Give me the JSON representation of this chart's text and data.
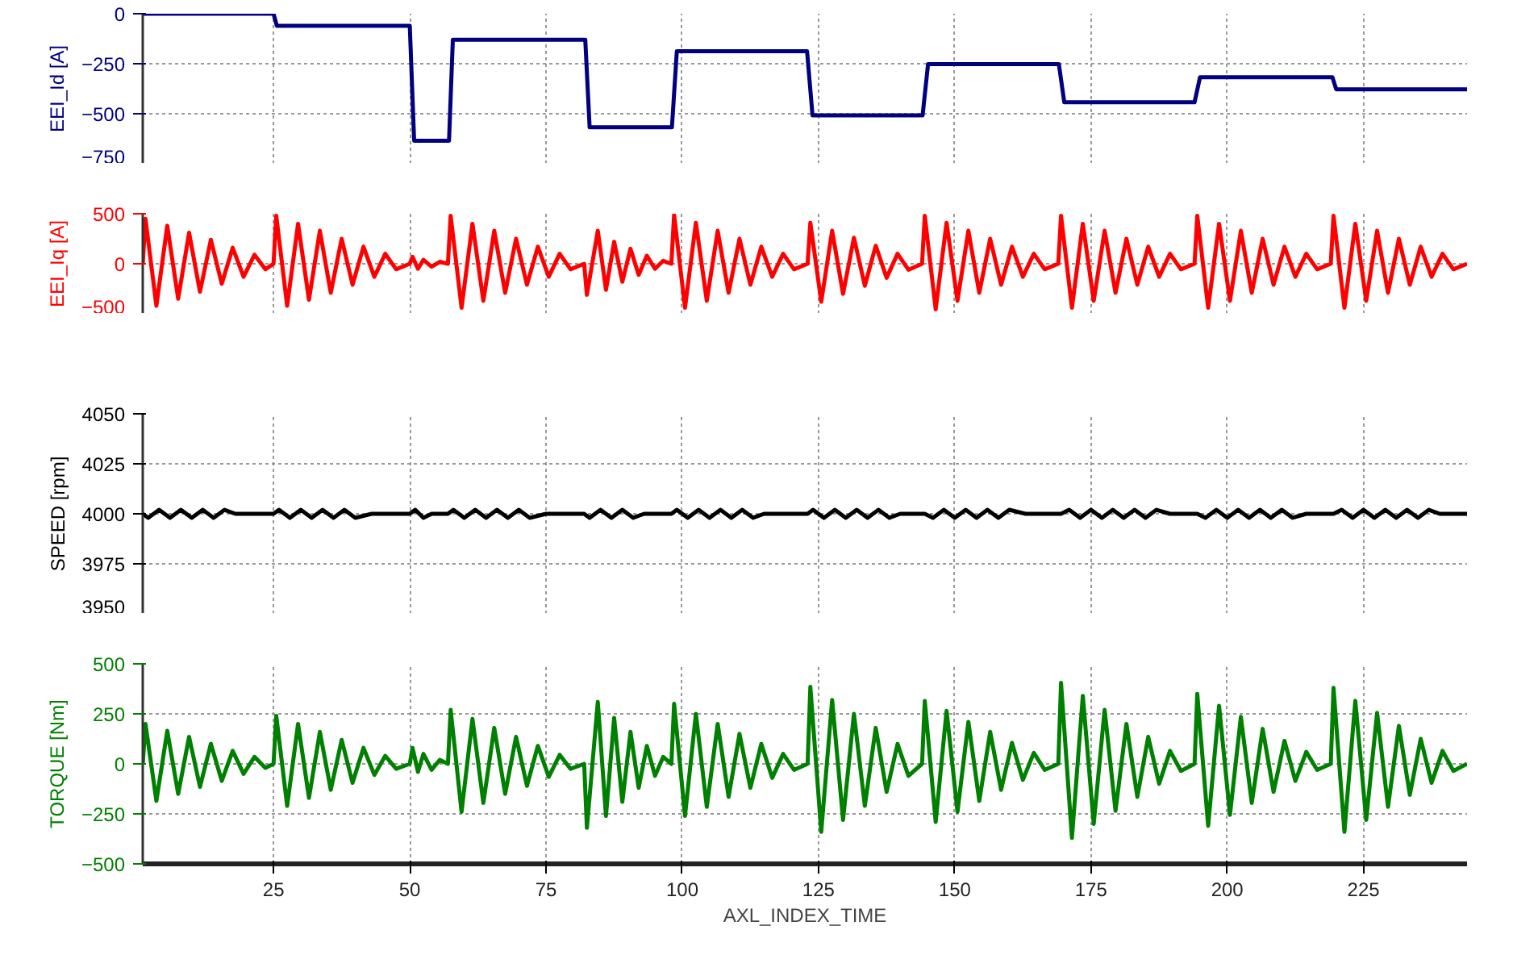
{
  "chart_data": [
    {
      "type": "line",
      "ylabel": "EEI_Id [A]",
      "xlim": [
        1,
        244
      ],
      "xticks": [
        25,
        50,
        75,
        100,
        125,
        150,
        175,
        200,
        225
      ],
      "ylim": [
        -750,
        0
      ],
      "yticks": [
        0,
        -250,
        -500,
        -750
      ],
      "grid": true,
      "tick_labels": "y",
      "series": [
        {
          "color": "#000080",
          "x": [
            1,
            25,
            25.6,
            50,
            50.8,
            57.2,
            57.9,
            82.2,
            83,
            98.1,
            99,
            122.9,
            123.9,
            144.1,
            145.1,
            169.1,
            170.1,
            194,
            195,
            219.3,
            220,
            244
          ],
          "values": [
            0,
            0,
            -60,
            -60,
            -635,
            -635,
            -130,
            -130,
            -568,
            -568,
            -188,
            -188,
            -508,
            -508,
            -252,
            -252,
            -443,
            -443,
            -318,
            -318,
            -378,
            -378
          ]
        }
      ]
    },
    {
      "type": "line",
      "ylabel": "EEI_Iq [A]",
      "xlim": [
        1,
        244
      ],
      "xticks": [
        25,
        50,
        75,
        100,
        125,
        150,
        175,
        200,
        225
      ],
      "ylim": [
        -500,
        500
      ],
      "yticks": [
        500,
        0,
        -500
      ],
      "grid": true,
      "tick_labels": "y",
      "series": [
        {
          "color": "#ff0000",
          "x": [
            1,
            1.5,
            3.5,
            5.5,
            7.5,
            9.5,
            11.5,
            13.5,
            15.5,
            17.5,
            19.5,
            21.5,
            23.5,
            25,
            25.5,
            27.5,
            29.5,
            31.5,
            33.5,
            35.5,
            37.5,
            39.5,
            41.5,
            43.5,
            45.5,
            47.5,
            50,
            50.5,
            51.5,
            52.5,
            54,
            55.5,
            57,
            57.5,
            59.5,
            61.5,
            63.5,
            65.5,
            67.5,
            69.5,
            71.5,
            73.5,
            75.5,
            77.5,
            79.5,
            82,
            82.5,
            84.5,
            86,
            87.5,
            89,
            90.5,
            92,
            93.5,
            95,
            96.5,
            98,
            98.5,
            100.5,
            102.5,
            104.5,
            106.5,
            108.5,
            110.5,
            112.5,
            114.5,
            116.5,
            118.5,
            120.5,
            123,
            123.5,
            125.5,
            127.5,
            129.5,
            131.5,
            133.5,
            135.5,
            137.5,
            139.5,
            141.5,
            144,
            144.5,
            146.5,
            148.5,
            150.5,
            152.5,
            154.5,
            156.5,
            158.5,
            160.5,
            162.5,
            164.5,
            166.5,
            169,
            169.5,
            171.5,
            173.5,
            175.5,
            177.5,
            179.5,
            181.5,
            183.5,
            185.5,
            187.5,
            189.5,
            191.5,
            194,
            194.5,
            196.5,
            198.5,
            200.5,
            202.5,
            204.5,
            206.5,
            208.5,
            210.5,
            212.5,
            214.5,
            216.5,
            219,
            219.5,
            221.5,
            223.5,
            225.5,
            227.5,
            229.5,
            231.5,
            233.5,
            235.5,
            237.5,
            239.5,
            241.5,
            244
          ],
          "values": [
            0,
            450,
            -420,
            380,
            -350,
            310,
            -280,
            240,
            -200,
            160,
            -130,
            90,
            -55,
            0,
            480,
            -420,
            400,
            -360,
            330,
            -290,
            250,
            -210,
            170,
            -130,
            100,
            -55,
            0,
            70,
            -50,
            40,
            -30,
            20,
            0,
            480,
            -440,
            400,
            -370,
            330,
            -290,
            250,
            -210,
            170,
            -130,
            100,
            -55,
            0,
            -310,
            330,
            -260,
            220,
            -180,
            150,
            -110,
            80,
            -50,
            30,
            0,
            490,
            -440,
            410,
            -370,
            330,
            -290,
            250,
            -210,
            170,
            -130,
            100,
            -55,
            0,
            410,
            -380,
            330,
            -300,
            260,
            -220,
            180,
            -140,
            100,
            -60,
            0,
            480,
            -455,
            410,
            -370,
            330,
            -290,
            250,
            -210,
            170,
            -130,
            100,
            -55,
            0,
            480,
            -440,
            400,
            -370,
            330,
            -290,
            250,
            -210,
            170,
            -130,
            100,
            -55,
            0,
            480,
            -440,
            400,
            -370,
            330,
            -290,
            250,
            -210,
            170,
            -130,
            100,
            -55,
            0,
            480,
            -440,
            400,
            -370,
            330,
            -290,
            250,
            -210,
            170,
            -130,
            100,
            -55,
            0
          ]
        }
      ]
    },
    {
      "type": "line",
      "ylabel": "SPEED [rpm]",
      "xlim": [
        1,
        244
      ],
      "xticks": [
        25,
        50,
        75,
        100,
        125,
        150,
        175,
        200,
        225
      ],
      "ylim": [
        3950,
        4050
      ],
      "yticks": [
        4050,
        4025,
        4000,
        3975,
        3950
      ],
      "grid": true,
      "tick_labels": "y",
      "series": [
        {
          "color": "#000000",
          "x": [
            1,
            2,
            4,
            6,
            8,
            10,
            12,
            14,
            16,
            18,
            25,
            26,
            28,
            30,
            32,
            34,
            36,
            38,
            40,
            43,
            50,
            51,
            52.5,
            54,
            57,
            58,
            60,
            62,
            64,
            66,
            68,
            70,
            72,
            75,
            82,
            83,
            85,
            87,
            89,
            91,
            93,
            98,
            99,
            101,
            103,
            105,
            107,
            109,
            111,
            113,
            115,
            123,
            124,
            126,
            128,
            130,
            132,
            134,
            136,
            138,
            140,
            144.5,
            146,
            148,
            150,
            152,
            154,
            156,
            158,
            160,
            163,
            169.5,
            171,
            173,
            175,
            177,
            179,
            181,
            183,
            185,
            187,
            189.5,
            194.5,
            196,
            198,
            200,
            202,
            204,
            206,
            208,
            210,
            212,
            214.5,
            219.5,
            221,
            223,
            225,
            227,
            229,
            231,
            233,
            235,
            237,
            239,
            244
          ],
          "values": [
            4000,
            3998,
            4002,
            3998,
            4002,
            3998,
            4002,
            3998,
            4002,
            4000,
            4000,
            4002,
            3998,
            4002,
            3998,
            4002,
            3998,
            4002,
            3998,
            4000,
            4000,
            4002,
            3998,
            4000,
            4000,
            4002,
            3998,
            4002,
            3998,
            4002,
            3998,
            4002,
            3998,
            4000,
            4000,
            3998,
            4002,
            3998,
            4002,
            3998,
            4000,
            4000,
            4002,
            3998,
            4002,
            3998,
            4002,
            3998,
            4002,
            3998,
            4000,
            4000,
            4002,
            3998,
            4002,
            3998,
            4002,
            3998,
            4002,
            3998,
            4000,
            4000,
            3998,
            4002,
            3998,
            4002,
            3998,
            4002,
            3998,
            4002,
            4000,
            4000,
            4002,
            3998,
            4002,
            3998,
            4002,
            3998,
            4002,
            3998,
            4002,
            4000,
            4000,
            3998,
            4002,
            3998,
            4002,
            3998,
            4002,
            3998,
            4002,
            3998,
            4000,
            4000,
            4002,
            3998,
            4002,
            3998,
            4002,
            3998,
            4002,
            3998,
            4002,
            4000,
            4000
          ]
        }
      ]
    },
    {
      "type": "line",
      "ylabel": "TORQUE [Nm]",
      "xlabel": "AXL_INDEX_TIME",
      "xlim": [
        1,
        244
      ],
      "xticks": [
        25,
        50,
        75,
        100,
        125,
        150,
        175,
        200,
        225
      ],
      "ylim": [
        -500,
        500
      ],
      "yticks": [
        500,
        250,
        0,
        -250,
        -500
      ],
      "grid": true,
      "series": [
        {
          "color": "#008000",
          "x": [
            1,
            1.5,
            3.5,
            5.5,
            7.5,
            9.5,
            11.5,
            13.5,
            15.5,
            17.5,
            19.5,
            21.5,
            23.5,
            25,
            25.5,
            27.5,
            29.5,
            31.5,
            33.5,
            35.5,
            37.5,
            39.5,
            41.5,
            43.5,
            45.5,
            47.5,
            50,
            50.5,
            51.5,
            52.5,
            54,
            55.5,
            57,
            57.5,
            59.5,
            61.5,
            63.5,
            65.5,
            67.5,
            69.5,
            71.5,
            73.5,
            75.5,
            77.5,
            79.5,
            82,
            82.5,
            84.5,
            86,
            87.5,
            89,
            90.5,
            92,
            93.5,
            95,
            96.5,
            98,
            98.5,
            100.5,
            102.5,
            104.5,
            106.5,
            108.5,
            110.5,
            112.5,
            114.5,
            116.5,
            118.5,
            120.5,
            123,
            123.5,
            125.5,
            127.5,
            129.5,
            131.5,
            133.5,
            135.5,
            137.5,
            139.5,
            141.5,
            144,
            144.5,
            146.5,
            148.5,
            150.5,
            152.5,
            154.5,
            156.5,
            158.5,
            160.5,
            162.5,
            164.5,
            166.5,
            169,
            169.5,
            171.5,
            173.5,
            175.5,
            177.5,
            179.5,
            181.5,
            183.5,
            185.5,
            187.5,
            189.5,
            191.5,
            194,
            194.5,
            196.5,
            198.5,
            200.5,
            202.5,
            204.5,
            206.5,
            208.5,
            210.5,
            212.5,
            214.5,
            216.5,
            219,
            219.5,
            221.5,
            223.5,
            225.5,
            227.5,
            229.5,
            231.5,
            233.5,
            235.5,
            237.5,
            239.5,
            241.5,
            244
          ],
          "values": [
            0,
            200,
            -185,
            165,
            -150,
            135,
            -115,
            100,
            -85,
            65,
            -50,
            35,
            -20,
            0,
            240,
            -210,
            200,
            -170,
            160,
            -130,
            120,
            -95,
            80,
            -55,
            40,
            -25,
            0,
            80,
            -40,
            50,
            -30,
            20,
            0,
            270,
            -240,
            225,
            -195,
            180,
            -150,
            135,
            -110,
            90,
            -65,
            45,
            -25,
            0,
            -320,
            310,
            -260,
            230,
            -190,
            160,
            -120,
            90,
            -60,
            35,
            0,
            300,
            -260,
            250,
            -215,
            200,
            -165,
            150,
            -120,
            100,
            -70,
            50,
            -30,
            0,
            385,
            -340,
            320,
            -280,
            250,
            -210,
            180,
            -140,
            100,
            -60,
            0,
            315,
            -290,
            265,
            -240,
            210,
            -185,
            160,
            -130,
            105,
            -80,
            55,
            -30,
            0,
            405,
            -370,
            340,
            -300,
            270,
            -235,
            200,
            -165,
            135,
            -100,
            65,
            -35,
            0,
            350,
            -310,
            290,
            -255,
            235,
            -195,
            175,
            -140,
            115,
            -85,
            60,
            -30,
            0,
            380,
            -340,
            315,
            -280,
            255,
            -215,
            190,
            -155,
            125,
            -95,
            65,
            -35,
            0
          ]
        }
      ]
    }
  ]
}
